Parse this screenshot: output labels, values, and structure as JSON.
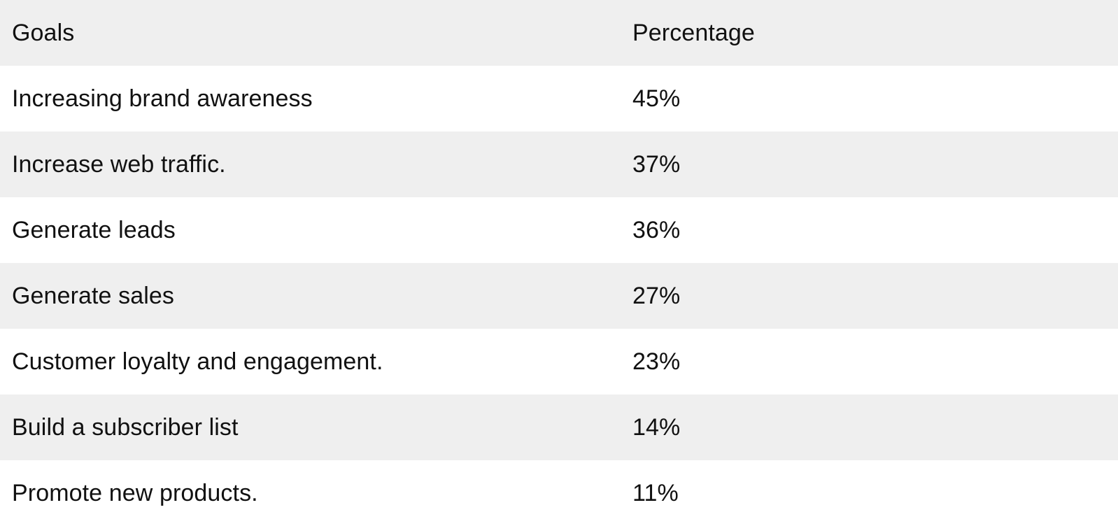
{
  "table": {
    "headers": {
      "goal": "Goals",
      "percentage": "Percentage"
    },
    "rows": [
      {
        "goal": "Increasing brand awareness",
        "percentage": "45%"
      },
      {
        "goal": "Increase web traffic.",
        "percentage": "37%"
      },
      {
        "goal": "Generate leads",
        "percentage": "36%"
      },
      {
        "goal": "Generate sales",
        "percentage": "27%"
      },
      {
        "goal": "Customer loyalty and engagement.",
        "percentage": "23%"
      },
      {
        "goal": "Build a subscriber list",
        "percentage": "14%"
      },
      {
        "goal": "Promote new products.",
        "percentage": "11%"
      }
    ]
  },
  "colors": {
    "header_background": "#efefef",
    "stripe_background": "#efefef",
    "row_background": "#ffffff",
    "text": "#111111"
  }
}
